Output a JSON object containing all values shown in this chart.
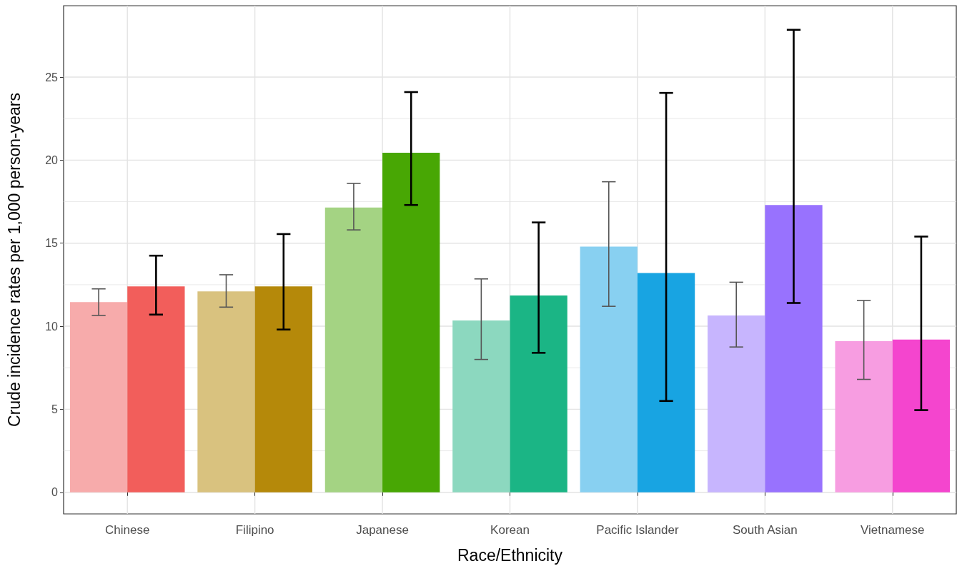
{
  "chart_data": {
    "type": "bar",
    "xlabel": "Race/Ethnicity",
    "ylabel": "Crude incidence rates per 1,000 person-years",
    "categories": [
      "Chinese",
      "Filipino",
      "Japanese",
      "Korean",
      "Pacific Islander",
      "South Asian",
      "Vietnamese"
    ],
    "series": [
      {
        "colors": [
          "#f7abab",
          "#d9c27f",
          "#a4d383",
          "#8cd8bf",
          "#88d0f1",
          "#c7b5fe",
          "#f79de1"
        ],
        "values": [
          11.45,
          12.1,
          17.15,
          10.35,
          14.8,
          10.65,
          9.1
        ],
        "errors": [
          [
            10.65,
            12.25
          ],
          [
            11.15,
            13.1
          ],
          [
            15.8,
            18.6
          ],
          [
            8.0,
            12.85
          ],
          [
            11.2,
            18.7
          ],
          [
            8.75,
            12.65
          ],
          [
            6.8,
            11.55
          ]
        ]
      },
      {
        "colors": [
          "#f25e5b",
          "#b5890a",
          "#48a704",
          "#1bb585",
          "#18a4e2",
          "#9872fe",
          "#f445ce"
        ],
        "values": [
          12.4,
          12.4,
          20.45,
          11.85,
          13.2,
          17.3,
          9.2
        ],
        "errors": [
          [
            10.7,
            14.25
          ],
          [
            9.8,
            15.55
          ],
          [
            17.3,
            24.1
          ],
          [
            8.4,
            16.25
          ],
          [
            5.5,
            24.05
          ],
          [
            11.4,
            27.85
          ],
          [
            4.95,
            15.4
          ]
        ]
      }
    ],
    "ylim": [
      -1.3,
      29.3
    ],
    "yticks": [
      0,
      5,
      10,
      15,
      20,
      25
    ],
    "grid": true
  }
}
